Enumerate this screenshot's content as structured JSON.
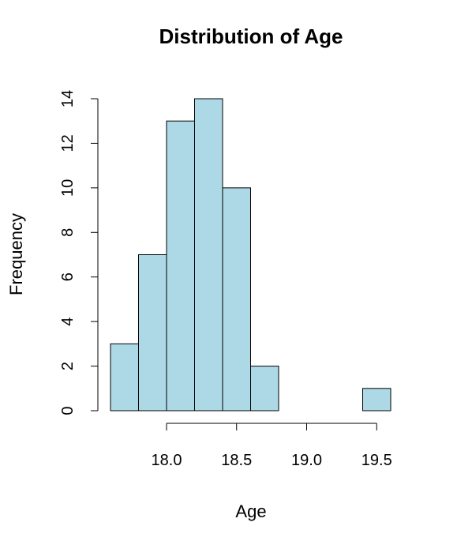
{
  "chart_data": {
    "type": "bar",
    "title": "Distribution of Age",
    "xlabel": "Age",
    "ylabel": "Frequency",
    "bin_edges": [
      17.6,
      17.8,
      18.0,
      18.2,
      18.4,
      18.6,
      18.8,
      19.0,
      19.2,
      19.4,
      19.6
    ],
    "values": [
      3,
      7,
      13,
      14,
      10,
      2,
      0,
      0,
      0,
      1
    ],
    "x_ticks": [
      18.0,
      18.5,
      19.0,
      19.5
    ],
    "x_tick_labels": [
      "18.0",
      "18.5",
      "19.0",
      "19.5"
    ],
    "y_ticks": [
      0,
      2,
      4,
      6,
      8,
      10,
      12,
      14
    ],
    "y_tick_labels": [
      "0",
      "2",
      "4",
      "6",
      "8",
      "10",
      "12",
      "14"
    ],
    "xlim": [
      17.6,
      19.6
    ],
    "ylim": [
      0,
      14
    ],
    "bar_color": "#ADD8E6",
    "grid": false
  }
}
